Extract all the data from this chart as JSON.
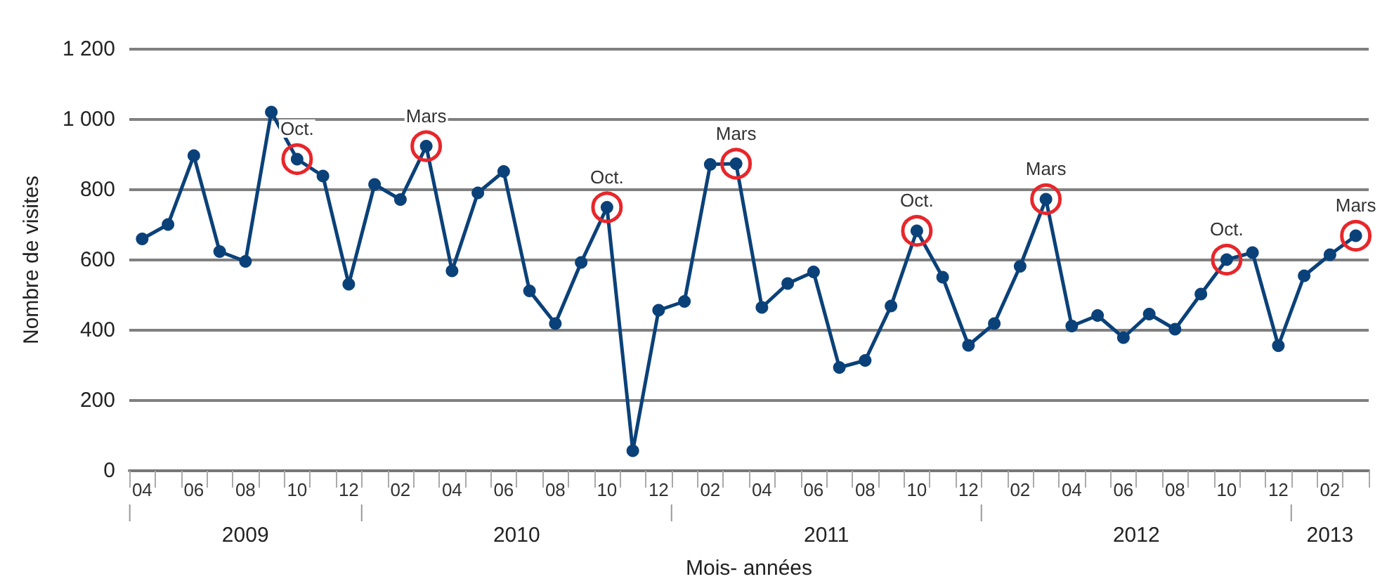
{
  "chart_data": {
    "type": "line",
    "xlabel": "Mois- années",
    "ylabel": "Nombre de visites",
    "categories": [
      "04",
      null,
      "06",
      null,
      "08",
      null,
      "10",
      null,
      "12",
      null,
      "02",
      null,
      "04",
      null,
      "06",
      null,
      "08",
      null,
      "10",
      null,
      "12",
      null,
      "02",
      null,
      "04",
      null,
      "06",
      null,
      "08",
      null,
      "10",
      null,
      "12",
      null,
      "02",
      null,
      "04",
      null,
      "06",
      null,
      "08",
      null,
      "10",
      null,
      "12",
      null,
      "02",
      null
    ],
    "series": [
      {
        "color": "#0b4179",
        "values": [
          660,
          701,
          897,
          624,
          596,
          1021,
          887,
          839,
          531,
          815,
          772,
          924,
          569,
          791,
          852,
          512,
          419,
          593,
          750,
          57,
          457,
          482,
          872,
          874,
          465,
          533,
          566,
          294,
          314,
          469,
          683,
          551,
          357,
          419,
          582,
          773,
          412,
          442,
          379,
          446,
          403,
          503,
          601,
          621,
          356,
          555,
          615,
          669
        ]
      }
    ],
    "ylim": [
      0,
      1200
    ],
    "yticks": [
      0,
      200,
      400,
      600,
      800,
      {
        "value": 1000,
        "label": "1 000"
      },
      {
        "value": 1200,
        "label": "1 200"
      }
    ],
    "grid": "y",
    "marker": "circle",
    "line_style": "solid",
    "annotations": [
      {
        "text": "Oct.",
        "y": 887
      },
      {
        "text": "Mars",
        "y": 924
      },
      {
        "text": "Oct.",
        "y": 750
      },
      {
        "text": "Mars",
        "y": 874
      },
      {
        "text": "Oct.",
        "y": 683
      },
      {
        "text": "Mars",
        "y": 773
      },
      {
        "text": "Oct.",
        "y": 601
      },
      {
        "text": "Mars",
        "y": 669
      },
      "2009",
      "2010",
      "2011",
      "2012",
      "2013"
    ]
  }
}
